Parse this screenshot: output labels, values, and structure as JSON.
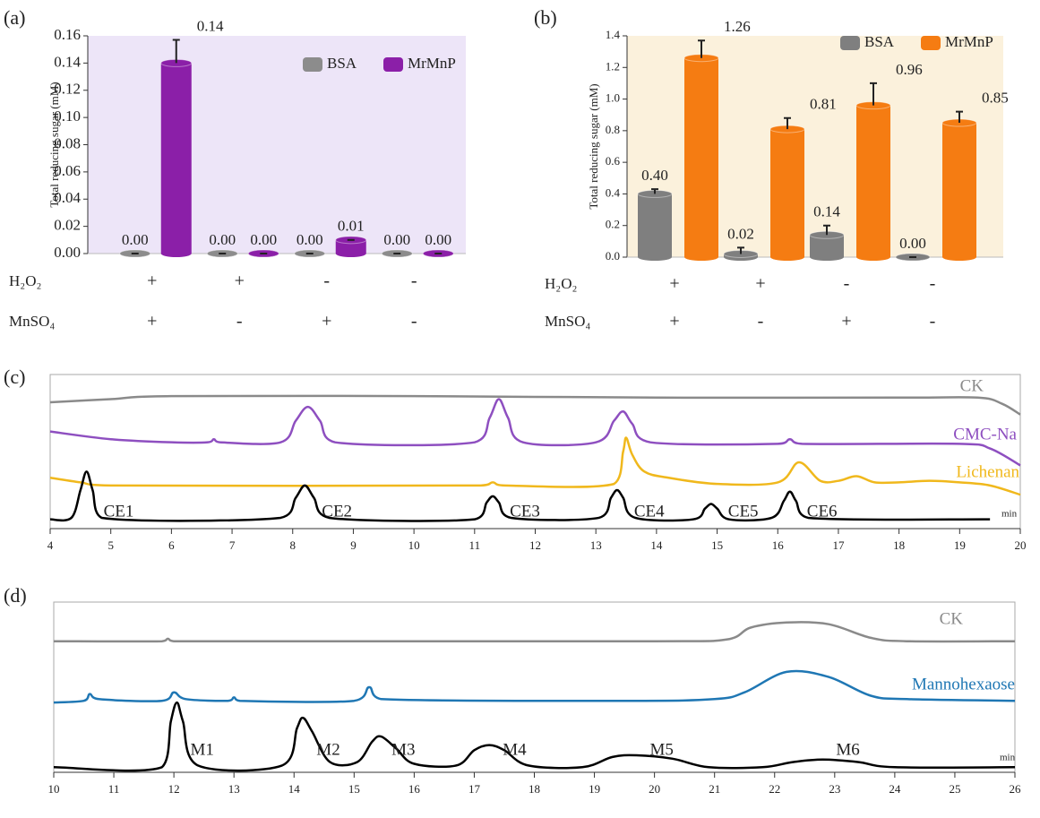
{
  "chart_data": [
    {
      "type": "bar",
      "panel_label": "(a)",
      "ylabel": "Total reducing sugar (mM)",
      "categories": [
        null,
        null,
        null,
        null
      ],
      "conditions": [
        {
          "label": "H₂O₂",
          "signs": [
            "+",
            "+",
            "-",
            "-"
          ]
        },
        {
          "label": "MnSO₄",
          "signs": [
            "+",
            "-",
            "+",
            "-"
          ]
        }
      ],
      "series": [
        {
          "name": "BSA",
          "color": "#8c8c8c",
          "values": [
            0,
            0,
            0,
            0
          ],
          "errors": [
            0,
            0,
            0,
            0
          ],
          "value_labels": [
            "0.00",
            "0.00",
            "0.00",
            "0.00"
          ]
        },
        {
          "name": "MrMnP",
          "color": "#8b1fa8",
          "values": [
            0.14,
            0,
            0.01,
            0
          ],
          "errors": [
            0.017,
            0,
            0,
            0
          ],
          "value_labels": [
            "0.14",
            "0.00",
            "0.01",
            "0.00"
          ]
        }
      ],
      "ylim": [
        0,
        0.16
      ],
      "yticks": [
        {
          "value": 0,
          "label": "0.00"
        },
        {
          "value": 0.02,
          "label": "0.02"
        },
        {
          "value": 0.04,
          "label": "0.04"
        },
        {
          "value": 0.06,
          "label": "0.06"
        },
        {
          "value": 0.08,
          "label": "0.08"
        },
        {
          "value": 0.1,
          "label": "0.10"
        },
        {
          "value": 0.12,
          "label": "0.12"
        },
        {
          "value": 0.14,
          "label": "0.14"
        },
        {
          "value": 0.16,
          "label": "0.16"
        }
      ],
      "background": "#ede5f8",
      "legend": "top-right"
    },
    {
      "type": "bar",
      "panel_label": "(b)",
      "ylabel": "Total reducing sugar (mM)",
      "categories": [
        null,
        null,
        null,
        null
      ],
      "conditions": [
        {
          "label": "H₂O₂",
          "signs": [
            "+",
            "+",
            "-",
            "-"
          ]
        },
        {
          "label": "MnSO₄",
          "signs": [
            "+",
            "-",
            "+",
            "-"
          ]
        }
      ],
      "series": [
        {
          "name": "BSA",
          "color": "#7f7f7f",
          "values": [
            0.4,
            0.02,
            0.14,
            0
          ],
          "errors": [
            0.03,
            0.04,
            0.06,
            0
          ],
          "value_labels": [
            "0.40",
            "0.02",
            "0.14",
            "0.00"
          ]
        },
        {
          "name": "MrMnP",
          "color": "#f57c12",
          "values": [
            1.26,
            0.81,
            0.96,
            0.85
          ],
          "errors": [
            0.11,
            0.07,
            0.14,
            0.07
          ],
          "value_labels": [
            "1.26",
            "0.81",
            "0.96",
            "0.85"
          ]
        }
      ],
      "ylim": [
        0,
        1.4
      ],
      "yticks": [
        {
          "value": 0,
          "label": "0.0"
        },
        {
          "value": 0.2,
          "label": "0.2"
        },
        {
          "value": 0.4,
          "label": "0.4"
        },
        {
          "value": 0.6,
          "label": "0.6"
        },
        {
          "value": 0.8,
          "label": "0.8"
        },
        {
          "value": 1,
          "label": "1.0"
        },
        {
          "value": 1.2,
          "label": "1.2"
        },
        {
          "value": 1.4,
          "label": "1.4"
        }
      ],
      "background": "#fbf1dc",
      "legend": "top-right"
    },
    {
      "type": "line",
      "panel_label": "(c)",
      "xlabel": "min",
      "xlim": [
        4,
        20
      ],
      "xticks": [
        4,
        5,
        6,
        7,
        8,
        9,
        10,
        11,
        12,
        13,
        14,
        15,
        16,
        17,
        18,
        19,
        20
      ],
      "ylim": [
        0,
        100
      ],
      "series": [
        {
          "name": "CK",
          "color": "#8a8a8a",
          "x": [
            4,
            5,
            6,
            10,
            14,
            18,
            19.3,
            19.7,
            20
          ],
          "values": [
            82,
            84,
            86,
            86,
            85,
            85,
            85,
            81,
            74
          ]
        },
        {
          "name": "CMC-Na",
          "color": "#8e4fc0",
          "x": [
            4,
            5,
            6,
            6.6,
            6.7,
            6.8,
            7.8,
            8.05,
            8.25,
            8.45,
            8.7,
            11,
            11.25,
            11.4,
            11.55,
            11.8,
            13,
            13.3,
            13.45,
            13.6,
            13.9,
            16,
            16.2,
            16.4,
            19,
            19.5,
            20
          ],
          "values": [
            63,
            58,
            56,
            56,
            58,
            56,
            56,
            70,
            79,
            70,
            56,
            56,
            72,
            84,
            72,
            56,
            56,
            70,
            76,
            68,
            56,
            55,
            58,
            55,
            55,
            52,
            41
          ]
        },
        {
          "name": "Lichenan",
          "color": "#f0b81c",
          "x": [
            4,
            4.5,
            5,
            11.1,
            11.3,
            11.5,
            13.3,
            13.45,
            13.5,
            13.6,
            13.8,
            14.2,
            15,
            16,
            16.35,
            16.7,
            17,
            17.3,
            17.6,
            18,
            18.5,
            19,
            19.5,
            20
          ],
          "values": [
            33,
            30,
            28,
            28,
            30,
            28,
            29,
            50,
            59,
            48,
            37,
            33,
            29,
            30,
            43,
            31,
            31,
            34,
            30,
            30,
            31,
            30,
            28,
            22
          ]
        },
        {
          "color": "#000000",
          "x": [
            4,
            4.35,
            4.5,
            4.6,
            4.7,
            4.85,
            7.8,
            8.05,
            8.2,
            8.35,
            8.6,
            11,
            11.2,
            11.3,
            11.4,
            11.6,
            13.05,
            13.25,
            13.35,
            13.45,
            13.65,
            14.6,
            14.8,
            14.9,
            15,
            15.2,
            15.9,
            16.1,
            16.2,
            16.3,
            16.5,
            19.5
          ],
          "values": [
            6,
            7,
            25,
            37,
            25,
            7,
            7,
            20,
            28,
            20,
            7,
            6,
            17,
            21,
            17,
            7,
            7,
            20,
            25,
            20,
            7,
            6,
            13,
            16,
            13,
            6,
            7,
            18,
            24,
            18,
            7,
            6
          ]
        }
      ],
      "annotations": [
        {
          "text": "CE1",
          "x": 4.6
        },
        {
          "text": "CE2",
          "x": 8.2
        },
        {
          "text": "CE3",
          "x": 11.3
        },
        {
          "text": "CE4",
          "x": 13.35
        },
        {
          "text": "CE5",
          "x": 14.9
        },
        {
          "text": "CE6",
          "x": 16.2
        }
      ]
    },
    {
      "type": "line",
      "panel_label": "(d)",
      "xlabel": "min",
      "xlim": [
        10,
        26
      ],
      "xticks": [
        10,
        11,
        12,
        13,
        14,
        15,
        16,
        17,
        18,
        19,
        20,
        21,
        22,
        23,
        24,
        25,
        26
      ],
      "ylim": [
        0,
        100
      ],
      "series": [
        {
          "name": "CK",
          "color": "#8a8a8a",
          "x": [
            10,
            11.8,
            11.9,
            12,
            15,
            20,
            21.2,
            21.6,
            22.2,
            22.9,
            23.6,
            24.2,
            26
          ],
          "values": [
            77,
            77,
            78.5,
            77,
            77,
            77,
            78,
            85,
            88,
            87,
            79,
            77,
            77
          ]
        },
        {
          "name": "Mannohexaose",
          "color": "#1f77b4",
          "x": [
            10,
            10.5,
            10.6,
            10.75,
            11.8,
            12,
            12.2,
            12.9,
            13,
            13.1,
            15,
            15.25,
            15.45,
            19.5,
            21,
            21.5,
            22.2,
            22.9,
            23.6,
            24.2,
            26
          ],
          "values": [
            41,
            42,
            46,
            43,
            42,
            47,
            43,
            42,
            44,
            42,
            42,
            50,
            43,
            42,
            43,
            47,
            59,
            56,
            45,
            43,
            42
          ]
        },
        {
          "color": "#000000",
          "x": [
            10,
            11.8,
            11.95,
            12.05,
            12.15,
            12.4,
            13.8,
            14.05,
            14.15,
            14.3,
            14.6,
            15.05,
            15.3,
            15.45,
            15.7,
            16,
            16.7,
            17,
            17.25,
            17.5,
            17.9,
            18.8,
            19.3,
            19.7,
            20.3,
            20.9,
            21.8,
            22.3,
            22.8,
            23.4,
            24,
            26
          ],
          "values": [
            3,
            3,
            30,
            41,
            30,
            4,
            4,
            26,
            32,
            24,
            6,
            6,
            18,
            21,
            14,
            5,
            4,
            13,
            16,
            13,
            4,
            3,
            9,
            10,
            8,
            3,
            3,
            6,
            7.5,
            6,
            3,
            3
          ]
        }
      ],
      "annotations": [
        {
          "text": "M1",
          "x": 12.05
        },
        {
          "text": "M2",
          "x": 14.15
        },
        {
          "text": "M3",
          "x": 15.4
        },
        {
          "text": "M4",
          "x": 17.25
        },
        {
          "text": "M5",
          "x": 19.7
        },
        {
          "text": "M6",
          "x": 22.8
        }
      ]
    }
  ]
}
